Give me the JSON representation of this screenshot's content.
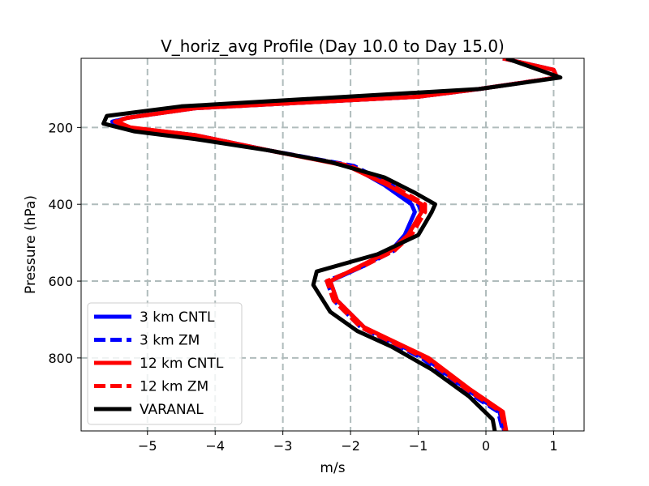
{
  "chart_data": {
    "type": "line",
    "title": "V_horiz_avg Profile (Day 10.0 to Day 15.0)",
    "xlabel": "m/s",
    "ylabel": "Pressure (hPa)",
    "xlim": [
      -5.98,
      1.45
    ],
    "ylim": [
      990,
      20
    ],
    "y_inverted": true,
    "grid": true,
    "x_ticks": [
      -5,
      -4,
      -3,
      -2,
      -1,
      0,
      1
    ],
    "x_tick_labels": [
      "−5",
      "−4",
      "−3",
      "−2",
      "−1",
      "0",
      "1"
    ],
    "y_ticks": [
      200,
      400,
      600,
      800
    ],
    "y_tick_labels": [
      "200",
      "400",
      "600",
      "800"
    ],
    "legend_position": "lower-left",
    "series": [
      {
        "name": "3 km CNTL",
        "color": "#0000ff",
        "style": "solid",
        "points": [
          [
            0.25,
            20
          ],
          [
            1.0,
            50
          ],
          [
            1.05,
            70
          ],
          [
            -0.1,
            100
          ],
          [
            -1.0,
            120
          ],
          [
            -4.3,
            150
          ],
          [
            -5.3,
            175
          ],
          [
            -5.5,
            185
          ],
          [
            -5.3,
            200
          ],
          [
            -4.3,
            220
          ],
          [
            -3.2,
            260
          ],
          [
            -2.0,
            300
          ],
          [
            -1.5,
            350
          ],
          [
            -1.1,
            400
          ],
          [
            -1.05,
            420
          ],
          [
            -1.2,
            480
          ],
          [
            -1.4,
            520
          ],
          [
            -1.8,
            560
          ],
          [
            -2.3,
            600
          ],
          [
            -2.2,
            650
          ],
          [
            -1.8,
            720
          ],
          [
            -0.9,
            800
          ],
          [
            -0.3,
            880
          ],
          [
            0.2,
            940
          ],
          [
            0.27,
            990
          ]
        ]
      },
      {
        "name": "3 km ZM",
        "color": "#0000ff",
        "style": "dashed",
        "points": [
          [
            0.25,
            20
          ],
          [
            1.0,
            50
          ],
          [
            1.05,
            70
          ],
          [
            -0.1,
            100
          ],
          [
            -1.0,
            120
          ],
          [
            -4.3,
            150
          ],
          [
            -5.3,
            175
          ],
          [
            -5.52,
            185
          ],
          [
            -5.3,
            200
          ],
          [
            -4.3,
            220
          ],
          [
            -3.2,
            260
          ],
          [
            -1.95,
            300
          ],
          [
            -1.4,
            350
          ],
          [
            -1.0,
            400
          ],
          [
            -0.95,
            420
          ],
          [
            -1.15,
            480
          ],
          [
            -1.35,
            520
          ],
          [
            -1.8,
            560
          ],
          [
            -2.35,
            600
          ],
          [
            -2.25,
            650
          ],
          [
            -1.85,
            720
          ],
          [
            -0.95,
            800
          ],
          [
            -0.35,
            880
          ],
          [
            0.18,
            940
          ],
          [
            0.25,
            990
          ]
        ]
      },
      {
        "name": "12 km CNTL",
        "color": "#ff0000",
        "style": "solid",
        "points": [
          [
            0.25,
            20
          ],
          [
            1.0,
            50
          ],
          [
            1.05,
            70
          ],
          [
            -0.1,
            100
          ],
          [
            -1.0,
            120
          ],
          [
            -4.3,
            150
          ],
          [
            -5.3,
            175
          ],
          [
            -5.45,
            185
          ],
          [
            -5.25,
            200
          ],
          [
            -4.3,
            220
          ],
          [
            -3.2,
            260
          ],
          [
            -2.05,
            300
          ],
          [
            -1.45,
            350
          ],
          [
            -0.95,
            400
          ],
          [
            -0.95,
            420
          ],
          [
            -1.15,
            480
          ],
          [
            -1.4,
            520
          ],
          [
            -1.85,
            560
          ],
          [
            -2.3,
            600
          ],
          [
            -2.2,
            650
          ],
          [
            -1.8,
            720
          ],
          [
            -0.85,
            800
          ],
          [
            -0.25,
            880
          ],
          [
            0.25,
            940
          ],
          [
            0.3,
            990
          ]
        ]
      },
      {
        "name": "12 km ZM",
        "color": "#ff0000",
        "style": "dashed",
        "points": [
          [
            0.25,
            20
          ],
          [
            1.0,
            50
          ],
          [
            1.05,
            70
          ],
          [
            -0.1,
            100
          ],
          [
            -1.0,
            120
          ],
          [
            -4.3,
            150
          ],
          [
            -5.3,
            175
          ],
          [
            -5.48,
            185
          ],
          [
            -5.27,
            200
          ],
          [
            -4.3,
            220
          ],
          [
            -3.2,
            260
          ],
          [
            -2.0,
            300
          ],
          [
            -1.4,
            350
          ],
          [
            -0.9,
            400
          ],
          [
            -0.9,
            420
          ],
          [
            -1.1,
            480
          ],
          [
            -1.35,
            520
          ],
          [
            -1.8,
            560
          ],
          [
            -2.35,
            600
          ],
          [
            -2.25,
            650
          ],
          [
            -1.85,
            720
          ],
          [
            -0.9,
            800
          ],
          [
            -0.3,
            880
          ],
          [
            0.22,
            940
          ],
          [
            0.28,
            990
          ]
        ]
      },
      {
        "name": "VARANAL",
        "color": "#000000",
        "style": "solid",
        "points": [
          [
            0.3,
            20
          ],
          [
            1.1,
            70
          ],
          [
            -0.1,
            100
          ],
          [
            -4.5,
            145
          ],
          [
            -5.6,
            170
          ],
          [
            -5.65,
            190
          ],
          [
            -5.2,
            210
          ],
          [
            -4.3,
            230
          ],
          [
            -3.2,
            260
          ],
          [
            -2.3,
            290
          ],
          [
            -1.5,
            330
          ],
          [
            -1.05,
            370
          ],
          [
            -0.75,
            400
          ],
          [
            -0.8,
            420
          ],
          [
            -1.0,
            480
          ],
          [
            -1.6,
            530
          ],
          [
            -2.5,
            575
          ],
          [
            -2.55,
            610
          ],
          [
            -2.3,
            680
          ],
          [
            -1.9,
            730
          ],
          [
            -1.4,
            770
          ],
          [
            -0.8,
            830
          ],
          [
            -0.25,
            900
          ],
          [
            0.1,
            960
          ],
          [
            0.13,
            990
          ]
        ]
      }
    ]
  }
}
